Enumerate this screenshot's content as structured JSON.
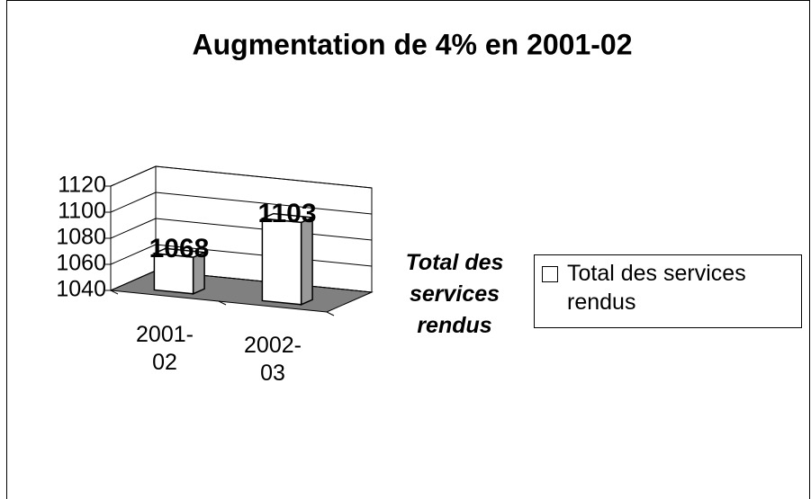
{
  "chart_data": {
    "type": "bar3d",
    "title": "Augmentation de 4% en 2001-02",
    "categories": [
      "2001-02",
      "2002-03"
    ],
    "series": [
      {
        "name": "Total des services rendus",
        "color": "#ffffff",
        "values": [
          1068,
          1103
        ]
      }
    ],
    "x_label": "Total des services rendus",
    "ylim": [
      1040,
      1120
    ],
    "yticks": [
      1040,
      1060,
      1080,
      1100,
      1120
    ],
    "grid": true,
    "legend": "right"
  }
}
